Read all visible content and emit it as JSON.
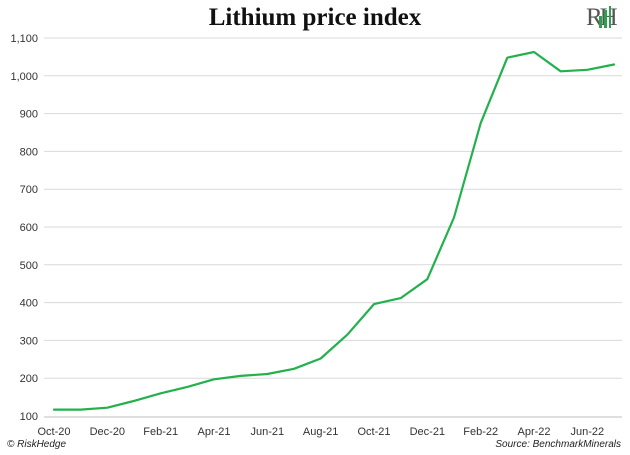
{
  "header": {
    "logo_text": "RH",
    "logo_icon": "candlestick-bars-icon"
  },
  "footer": {
    "copyright": "© RiskHedge",
    "source": "Source: BenchmarkMinerals"
  },
  "colors": {
    "line": "#22b14c",
    "grid": "#d9d9d9",
    "logo_accent": "#2e9e4f"
  },
  "chart_data": {
    "type": "line",
    "title": "Lithium price index",
    "xlabel": "",
    "ylabel": "",
    "ylim": [
      100,
      1100
    ],
    "yticks": [
      100,
      200,
      300,
      400,
      500,
      600,
      700,
      800,
      900,
      1000,
      1100
    ],
    "ytick_labels": [
      "100",
      "200",
      "300",
      "400",
      "500",
      "600",
      "700",
      "800",
      "900",
      "1,000",
      "1,100"
    ],
    "x_tick_labels": [
      "Oct-20",
      "Dec-20",
      "Feb-21",
      "Apr-21",
      "Jun-21",
      "Aug-21",
      "Oct-21",
      "Dec-21",
      "Feb-22",
      "Apr-22",
      "Jun-22"
    ],
    "grid": "horizontal",
    "series": [
      {
        "name": "Lithium price index",
        "x": [
          "Oct-20",
          "Nov-20",
          "Dec-20",
          "Jan-21",
          "Feb-21",
          "Mar-21",
          "Apr-21",
          "May-21",
          "Jun-21",
          "Jul-21",
          "Aug-21",
          "Sep-21",
          "Oct-21",
          "Nov-21",
          "Dec-21",
          "Jan-22",
          "Feb-22",
          "Mar-22",
          "Apr-22",
          "May-22",
          "Jun-22",
          "Jul-22"
        ],
        "values": [
          117,
          117,
          122,
          140,
          160,
          177,
          197,
          206,
          211,
          225,
          252,
          315,
          396,
          412,
          462,
          625,
          875,
          1048,
          1063,
          1012,
          1016,
          1030
        ]
      }
    ]
  }
}
